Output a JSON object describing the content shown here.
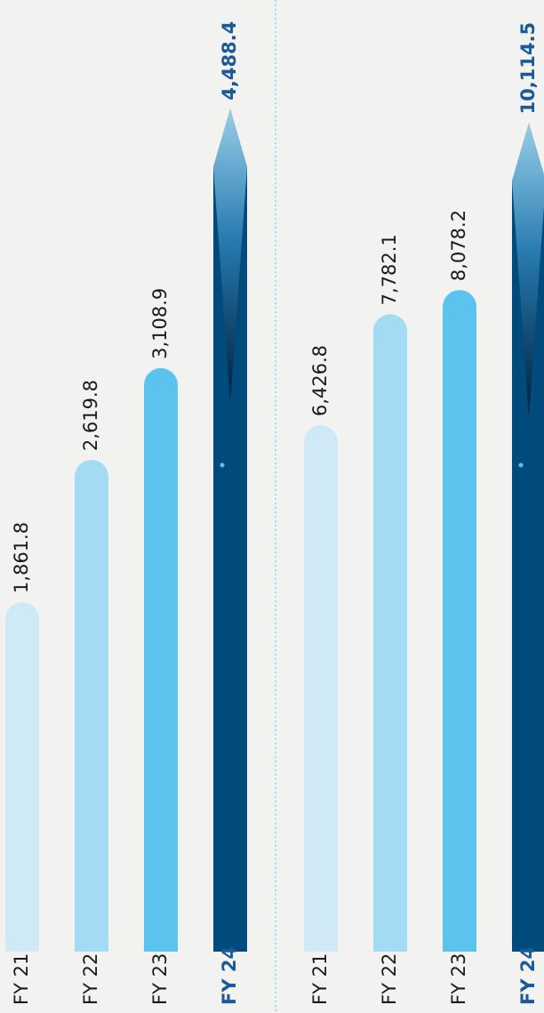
{
  "chart_data": [
    {
      "type": "bar",
      "categories": [
        "FY 21",
        "FY 22",
        "FY 23",
        "FY 24"
      ],
      "values": [
        1861.8,
        2619.8,
        3108.9,
        4488.4
      ],
      "value_labels": [
        "1,861.8",
        "2,619.8",
        "3,108.9",
        "4,488.4"
      ],
      "colors": [
        "#cfe9f7",
        "#a3daf4",
        "#5bc4ee",
        "#004a7c"
      ],
      "ylim": [
        0,
        4800
      ]
    },
    {
      "type": "bar",
      "categories": [
        "FY 21",
        "FY 22",
        "FY 23",
        "FY 24"
      ],
      "values": [
        6426.8,
        7782.1,
        8078.2,
        10114.5
      ],
      "value_labels": [
        "6,426.8",
        "7,782.1",
        "8,078.2",
        "10,114.5"
      ],
      "colors": [
        "#cfe9f7",
        "#a3daf4",
        "#5bc4ee",
        "#004a7c"
      ],
      "ylim": [
        0,
        11000
      ]
    }
  ]
}
